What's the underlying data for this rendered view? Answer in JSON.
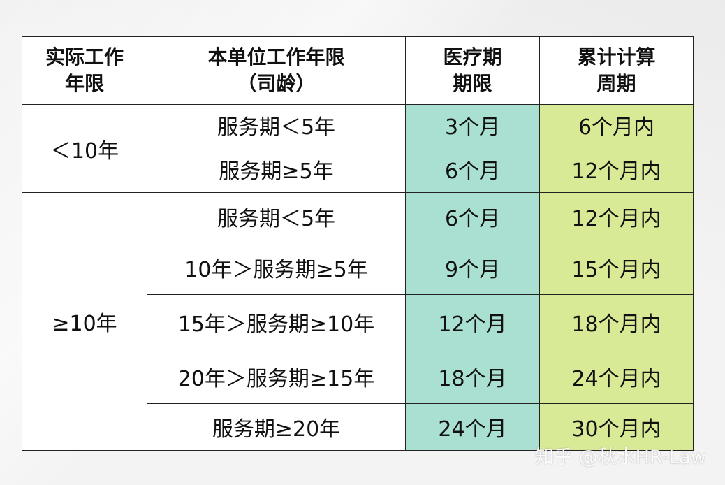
{
  "headers": {
    "col1": [
      "实际工作",
      "年限"
    ],
    "col2": [
      "本单位工作年限",
      "（司龄）"
    ],
    "col3": [
      "医疗期",
      "期限"
    ],
    "col4": [
      "累计计算",
      "周期"
    ]
  },
  "groups": [
    {
      "work_years": "＜10年",
      "rows": [
        {
          "service": "服务期＜5年",
          "medical": "3个月",
          "cumulative": "6个月内"
        },
        {
          "service": "服务期≥5年",
          "medical": "6个月",
          "cumulative": "12个月内"
        }
      ]
    },
    {
      "work_years": "≥10年",
      "rows": [
        {
          "service": "服务期＜5年",
          "medical": "6个月",
          "cumulative": "12个月内"
        },
        {
          "service": "10年＞服务期≥5年",
          "medical": "9个月",
          "cumulative": "15个月内"
        },
        {
          "service": "15年＞服务期≥10年",
          "medical": "12个月",
          "cumulative": "18个月内"
        },
        {
          "service": "20年＞服务期≥15年",
          "medical": "18个月",
          "cumulative": "24个月内"
        },
        {
          "service": "服务期≥20年",
          "medical": "24个月",
          "cumulative": "30个月内"
        }
      ]
    }
  ],
  "colors": {
    "medical_fill": "#a9e0d1",
    "cumulative_fill": "#d8ea96",
    "border": "#222222"
  },
  "watermark": "知乎 @秋水HR-Law"
}
